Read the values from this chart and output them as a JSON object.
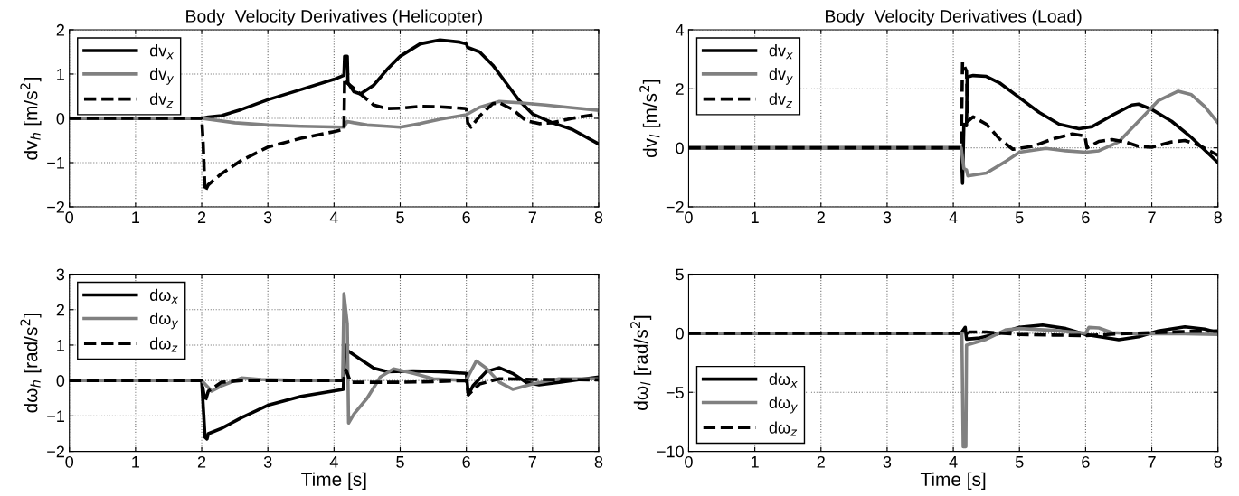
{
  "chart_data": [
    {
      "type": "line",
      "title": "Body  Velocity Derivatives (Helicopter)",
      "ylabel": "dv$_{h}$ [m/s$^{2}$]",
      "xlim": [
        0,
        8
      ],
      "xticks": [
        0,
        1,
        2,
        3,
        4,
        5,
        6,
        7,
        8
      ],
      "ylim": [
        -2,
        2
      ],
      "yticks": [
        -2,
        -1,
        0,
        1,
        2
      ],
      "grid": true,
      "legend": "top left",
      "series": [
        {
          "name": "dv$_{x}$",
          "color": "#000000",
          "line_style": "solid",
          "x": [
            0,
            2,
            2.1,
            2.3,
            2.6,
            3,
            3.5,
            4,
            4.15,
            4.16,
            4.2,
            4.21,
            4.3,
            4.4,
            4.6,
            4.8,
            5,
            5.3,
            5.6,
            5.9,
            6,
            6.02,
            6.2,
            6.4,
            6.6,
            6.8,
            7,
            7.3,
            7.6,
            8
          ],
          "values": [
            0,
            0,
            0.03,
            0.06,
            0.2,
            0.42,
            0.65,
            0.88,
            0.97,
            1.4,
            1.4,
            0.8,
            0.6,
            0.55,
            0.75,
            1.1,
            1.4,
            1.68,
            1.77,
            1.72,
            1.68,
            1.6,
            1.5,
            1.2,
            0.8,
            0.4,
            0.1,
            -0.1,
            -0.25,
            -0.58
          ]
        },
        {
          "name": "dv$_{y}$",
          "color": "#808080",
          "line_style": "solid",
          "x": [
            0,
            2,
            2.5,
            3,
            3.5,
            4.15,
            4.2,
            4.3,
            4.5,
            4.8,
            5,
            5.3,
            5.6,
            6,
            6.2,
            6.5,
            6.8,
            7.2,
            7.6,
            8
          ],
          "values": [
            0,
            0,
            -0.1,
            -0.15,
            -0.18,
            -0.2,
            -0.07,
            -0.1,
            -0.15,
            -0.18,
            -0.2,
            -0.12,
            -0.02,
            0.08,
            0.25,
            0.38,
            0.35,
            0.3,
            0.24,
            0.18
          ]
        },
        {
          "name": "dv$_{z}$",
          "color": "#000000",
          "line_style": "dashed",
          "x": [
            0,
            2,
            2.02,
            2.05,
            2.1,
            2.3,
            2.6,
            3,
            3.5,
            4,
            4.15,
            4.16,
            4.2,
            4.4,
            4.6,
            4.8,
            5,
            5.3,
            5.6,
            6,
            6.02,
            6.07,
            6.2,
            6.4,
            6.5,
            6.7,
            6.9,
            7.1,
            7.3,
            7.6,
            8
          ],
          "values": [
            0,
            0,
            -0.5,
            -1.65,
            -1.5,
            -1.25,
            -0.95,
            -0.65,
            -0.45,
            -0.3,
            -0.25,
            0.9,
            0.8,
            0.55,
            0.3,
            0.22,
            0.23,
            0.27,
            0.26,
            0.22,
            -0.1,
            -0.2,
            0.05,
            0.33,
            0.35,
            0.2,
            -0.05,
            -0.12,
            -0.1,
            0.0,
            0.1
          ]
        }
      ]
    },
    {
      "type": "line",
      "title": "Body  Velocity Derivatives (Load)",
      "ylabel": "dv$_{l}$ [m/s$^{2}$]",
      "xlim": [
        0,
        8
      ],
      "xticks": [
        0,
        1,
        2,
        3,
        4,
        5,
        6,
        7,
        8
      ],
      "ylim": [
        -2,
        4
      ],
      "yticks": [
        -2,
        0,
        2,
        4
      ],
      "grid": true,
      "legend": "top left",
      "series": [
        {
          "name": "dv$_{x}$",
          "color": "#000000",
          "line_style": "solid",
          "x": [
            0,
            4.12,
            4.14,
            4.16,
            4.2,
            4.21,
            4.3,
            4.5,
            4.7,
            5,
            5.3,
            5.6,
            5.9,
            6.1,
            6.4,
            6.7,
            6.8,
            7,
            7.3,
            7.6,
            8
          ],
          "values": [
            0,
            0,
            -1.2,
            0.8,
            0.75,
            2.4,
            2.45,
            2.42,
            2.2,
            1.7,
            1.2,
            0.8,
            0.65,
            0.72,
            1.1,
            1.45,
            1.48,
            1.3,
            0.9,
            0.35,
            -0.5
          ]
        },
        {
          "name": "dv$_{y}$",
          "color": "#808080",
          "line_style": "solid",
          "x": [
            0,
            4.12,
            4.16,
            4.2,
            4.22,
            4.5,
            4.8,
            5,
            5.4,
            5.7,
            6,
            6.2,
            6.5,
            6.8,
            7.1,
            7.4,
            7.6,
            7.8,
            8
          ],
          "values": [
            0,
            0,
            -0.7,
            -0.75,
            -0.95,
            -0.85,
            -0.45,
            -0.15,
            -0.02,
            -0.1,
            -0.15,
            -0.1,
            0.2,
            0.9,
            1.6,
            1.92,
            1.8,
            1.4,
            0.85
          ]
        },
        {
          "name": "dv$_{z}$",
          "color": "#000000",
          "line_style": "dashed",
          "x": [
            0,
            4.12,
            4.14,
            4.2,
            4.22,
            4.3,
            4.5,
            4.7,
            4.9,
            5.2,
            5.5,
            5.8,
            5.99,
            6.02,
            6.2,
            6.4,
            6.6,
            6.8,
            7,
            7.3,
            7.5,
            7.7,
            8
          ],
          "values": [
            0,
            0,
            2.9,
            2.6,
            0.9,
            1.05,
            0.8,
            0.3,
            -0.05,
            0.05,
            0.3,
            0.47,
            0.4,
            0,
            0.22,
            0.28,
            0.2,
            0.05,
            0.02,
            0.2,
            0.25,
            0.1,
            -0.25
          ]
        }
      ]
    },
    {
      "type": "line",
      "xlabel": "Time [s]",
      "ylabel": "dω$_{h}$ [rad/s$^{2}$]",
      "xlim": [
        0,
        8
      ],
      "xticks": [
        0,
        1,
        2,
        3,
        4,
        5,
        6,
        7,
        8
      ],
      "ylim": [
        -2,
        3
      ],
      "yticks": [
        -2,
        -1,
        0,
        1,
        2,
        3
      ],
      "grid": true,
      "legend": "top left",
      "series": [
        {
          "name": "dω$_{x}$",
          "color": "#000000",
          "line_style": "solid",
          "x": [
            0,
            2,
            2.05,
            2.08,
            2.1,
            2.3,
            2.6,
            3,
            3.5,
            4.14,
            4.17,
            4.2,
            4.4,
            4.6,
            4.8,
            5.2,
            5.6,
            6,
            6.03,
            6.1,
            6.3,
            6.5,
            6.7,
            6.9,
            7.1,
            7.4,
            7.8,
            8
          ],
          "values": [
            0,
            0,
            -1.6,
            -1.65,
            -1.5,
            -1.35,
            -1.05,
            -0.7,
            -0.45,
            -0.25,
            1.0,
            0.85,
            0.6,
            0.35,
            0.25,
            0.27,
            0.25,
            0.2,
            -0.4,
            -0.15,
            0.25,
            0.36,
            0.2,
            -0.05,
            -0.12,
            -0.05,
            0.05,
            0.1
          ]
        },
        {
          "name": "dω$_{y}$",
          "color": "#808080",
          "line_style": "solid",
          "x": [
            0,
            2,
            2.1,
            2.15,
            2.3,
            2.6,
            2.9,
            3.5,
            4.13,
            4.15,
            4.2,
            4.22,
            4.3,
            4.5,
            4.7,
            4.9,
            5.2,
            5.5,
            6,
            6.05,
            6.15,
            6.3,
            6.5,
            6.7,
            7,
            7.4,
            8
          ],
          "values": [
            0,
            0,
            -0.2,
            -0.3,
            -0.15,
            0.07,
            0.03,
            0,
            0,
            2.45,
            1.6,
            -1.2,
            -0.95,
            -0.5,
            0.1,
            0.33,
            0.2,
            0.05,
            0,
            0.2,
            0.55,
            0.35,
            -0.05,
            -0.25,
            -0.1,
            0.05,
            0.05
          ]
        },
        {
          "name": "dω$_{z}$",
          "color": "#000000",
          "line_style": "dashed",
          "x": [
            0,
            2,
            2.05,
            2.1,
            2.3,
            2.6,
            4.14,
            4.18,
            4.25,
            4.6,
            5,
            5.5,
            6,
            6.03,
            6.2,
            6.5,
            7,
            8
          ],
          "values": [
            0,
            0,
            -0.6,
            -0.3,
            -0.05,
            0,
            0,
            0.3,
            -0.05,
            -0.05,
            -0.05,
            -0.03,
            0,
            -0.4,
            -0.1,
            0.05,
            0.03,
            0.02
          ]
        }
      ]
    },
    {
      "type": "line",
      "xlabel": "Time [s]",
      "ylabel": "dω$_{l}$ [rad/s$^{2}$]",
      "xlim": [
        0,
        8
      ],
      "xticks": [
        0,
        1,
        2,
        3,
        4,
        5,
        6,
        7,
        8
      ],
      "ylim": [
        -10,
        5
      ],
      "yticks": [
        -10,
        -5,
        0,
        5
      ],
      "grid": true,
      "legend": "bottom left",
      "series": [
        {
          "name": "dω$_{x}$",
          "color": "#000000",
          "line_style": "solid",
          "x": [
            0,
            4.12,
            4.18,
            4.2,
            4.4,
            4.7,
            5,
            5.35,
            5.7,
            6,
            6.5,
            6.8,
            7.1,
            7.5,
            7.8,
            8
          ],
          "values": [
            0,
            0,
            0.5,
            -0.5,
            -0.4,
            0,
            0.5,
            0.7,
            0.4,
            -0.1,
            -0.55,
            -0.3,
            0.2,
            0.55,
            0.35,
            0.05
          ]
        },
        {
          "name": "dω$_{y}$",
          "color": "#808080",
          "line_style": "solid",
          "x": [
            0,
            4.13,
            4.15,
            4.19,
            4.2,
            4.5,
            4.8,
            5,
            5.5,
            6,
            6.05,
            6.2,
            6.4,
            6.8,
            7.5,
            8
          ],
          "values": [
            0,
            0,
            -9.6,
            -9.6,
            -1.0,
            -0.5,
            0.3,
            0.4,
            0.25,
            0,
            0.5,
            0.45,
            0.05,
            -0.05,
            -0.05,
            -0.1
          ]
        },
        {
          "name": "dω$_{z}$",
          "color": "#000000",
          "line_style": "dashed",
          "x": [
            0,
            4.12,
            4.17,
            4.25,
            4.5,
            5,
            5.5,
            6,
            6.5,
            7,
            7.5,
            8
          ],
          "values": [
            0,
            0,
            -0.1,
            0.1,
            0.1,
            -0.1,
            -0.15,
            -0.2,
            -0.05,
            0.05,
            0.15,
            0.2
          ]
        }
      ]
    }
  ]
}
